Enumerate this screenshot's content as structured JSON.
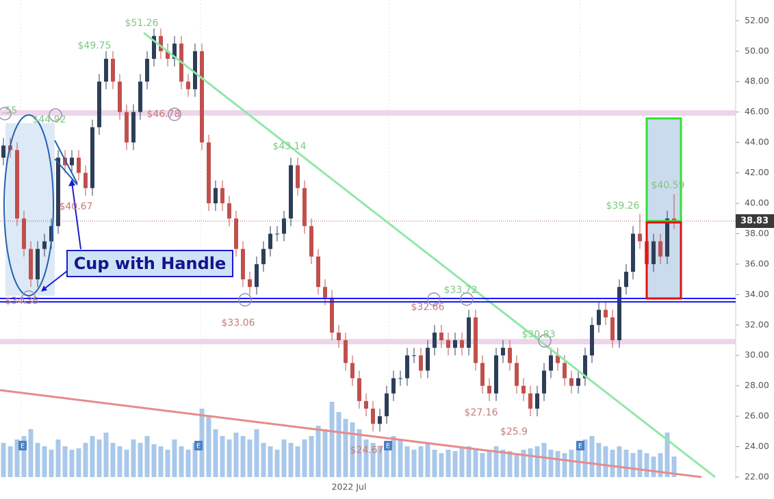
{
  "chart_data": {
    "type": "candlestick",
    "ylim": [
      22,
      52.6
    ],
    "yticks": [
      {
        "value": 22,
        "label": "22.00"
      },
      {
        "value": 24,
        "label": "24.00"
      },
      {
        "value": 26,
        "label": "26.00"
      },
      {
        "value": 28,
        "label": "28.00"
      },
      {
        "value": 30,
        "label": "30.00"
      },
      {
        "value": 32,
        "label": "32.00"
      },
      {
        "value": 34,
        "label": "34.00"
      },
      {
        "value": 36,
        "label": "36.00"
      },
      {
        "value": 38,
        "label": "38.00"
      },
      {
        "value": 40,
        "label": "40.00"
      },
      {
        "value": 42,
        "label": "42.00"
      },
      {
        "value": 44,
        "label": "44.00"
      },
      {
        "value": 46,
        "label": "46.00"
      },
      {
        "value": 48,
        "label": "48.00"
      },
      {
        "value": 50,
        "label": "50.00"
      },
      {
        "value": 52,
        "label": "52.00"
      }
    ],
    "x_labels": [
      "2022 Jul"
    ],
    "up_color": "#2c3e58",
    "down_color": "#c0504d",
    "volume_color": "#a9c8ea",
    "last_price": 38.83,
    "pattern_label": "Cup with Handle",
    "earnings_markers": [
      "E",
      "E",
      "E",
      "E"
    ],
    "annotations": [
      {
        "text": ".55",
        "color": "#7ec87e"
      },
      {
        "text": "$44.92",
        "color": "#7ec87e"
      },
      {
        "text": "$49.75",
        "color": "#7ec87e"
      },
      {
        "text": "$51.26",
        "color": "#7ec87e"
      },
      {
        "text": "$46.78",
        "color": "#c87a7a"
      },
      {
        "text": "$40.67",
        "color": "#c87a7a"
      },
      {
        "text": "$34.35",
        "color": "#c87a7a"
      },
      {
        "text": "$43.14",
        "color": "#7ec87e"
      },
      {
        "text": "$33.06",
        "color": "#c87a7a"
      },
      {
        "text": "$24.67",
        "color": "#c87a7a"
      },
      {
        "text": "$32.66",
        "color": "#c87a7a"
      },
      {
        "text": "$33.72",
        "color": "#7ec87e"
      },
      {
        "text": "$27.16",
        "color": "#c87a7a"
      },
      {
        "text": "$25.9",
        "color": "#c87a7a"
      },
      {
        "text": "$30.83",
        "color": "#7ec87e"
      },
      {
        "text": "$39.26",
        "color": "#7ec87e"
      },
      {
        "text": "$40.59",
        "color": "#7ec87e"
      }
    ],
    "candles": [
      [
        43,
        44.3,
        42.5,
        43.8
      ],
      [
        43.8,
        44.3,
        43,
        43.5
      ],
      [
        43.5,
        44,
        38.5,
        39
      ],
      [
        39,
        39.5,
        36.5,
        37
      ],
      [
        37,
        37.5,
        34.5,
        35
      ],
      [
        35,
        37.5,
        34.5,
        37
      ],
      [
        37,
        38,
        36.5,
        37.5
      ],
      [
        37.5,
        39,
        37,
        38.5
      ],
      [
        38.5,
        43.5,
        38,
        43
      ],
      [
        43,
        43.5,
        42,
        42.5
      ],
      [
        42.5,
        43.5,
        42,
        43
      ],
      [
        43,
        43.5,
        41.5,
        42
      ],
      [
        42,
        42.5,
        40.5,
        41
      ],
      [
        41,
        45.5,
        40.5,
        45
      ],
      [
        45,
        48.5,
        44.5,
        48
      ],
      [
        48,
        50,
        47.5,
        49.5
      ],
      [
        49.5,
        50,
        47.5,
        48
      ],
      [
        48,
        48.5,
        45.5,
        46
      ],
      [
        46,
        46.5,
        43.5,
        44
      ],
      [
        44,
        46.5,
        43.5,
        46
      ],
      [
        46,
        48.5,
        45.5,
        48
      ],
      [
        48,
        50,
        47.5,
        49.5
      ],
      [
        49.5,
        51.5,
        49,
        51
      ],
      [
        51,
        51.5,
        49.5,
        50
      ],
      [
        50,
        50.5,
        49,
        49.5
      ],
      [
        49.5,
        51,
        49,
        50.5
      ],
      [
        50.5,
        51,
        47.5,
        48
      ],
      [
        48,
        48.5,
        47,
        47.5
      ],
      [
        47.5,
        50.5,
        47,
        50
      ],
      [
        50,
        50.5,
        43.5,
        44
      ],
      [
        44,
        44.5,
        39.5,
        40
      ],
      [
        40,
        41.5,
        39.5,
        41
      ],
      [
        41,
        41.5,
        39.5,
        40
      ],
      [
        40,
        40.5,
        38.5,
        39
      ],
      [
        39,
        39.5,
        36.5,
        37
      ],
      [
        37,
        37.5,
        34.5,
        35
      ],
      [
        35,
        35.5,
        34,
        34.5
      ],
      [
        34.5,
        36.5,
        34,
        36
      ],
      [
        36,
        37.5,
        35.5,
        37
      ],
      [
        37,
        38.5,
        36.5,
        38
      ],
      [
        38,
        38.5,
        37.5,
        38
      ],
      [
        38,
        39.5,
        37.5,
        39
      ],
      [
        39,
        43,
        38.5,
        42.5
      ],
      [
        42.5,
        43,
        40.5,
        41
      ],
      [
        41,
        41.5,
        38,
        38.5
      ],
      [
        38.5,
        39,
        36,
        36.5
      ],
      [
        36.5,
        37,
        34,
        34.5
      ],
      [
        34.5,
        35,
        33.3,
        33.8
      ],
      [
        33.8,
        34.3,
        31,
        31.5
      ],
      [
        31.5,
        32,
        30.5,
        31
      ],
      [
        31,
        31.5,
        29,
        29.5
      ],
      [
        29.5,
        30,
        28,
        28.5
      ],
      [
        28.5,
        29,
        26.5,
        27
      ],
      [
        27,
        27.5,
        26,
        26.5
      ],
      [
        26.5,
        27,
        25,
        25.5
      ],
      [
        25.5,
        26.5,
        25,
        26
      ],
      [
        26,
        28,
        25.5,
        27.5
      ],
      [
        27.5,
        29,
        27,
        28.5
      ],
      [
        28.5,
        29,
        28,
        28.5
      ],
      [
        28.5,
        30.5,
        28,
        30
      ],
      [
        30,
        30.5,
        29.5,
        30
      ],
      [
        30,
        30.5,
        28.5,
        29
      ],
      [
        29,
        31,
        28.5,
        30.5
      ],
      [
        30.5,
        32,
        30,
        31.5
      ],
      [
        31.5,
        32,
        30.5,
        31
      ],
      [
        31,
        31.5,
        30,
        30.5
      ],
      [
        30.5,
        31.5,
        30,
        31
      ],
      [
        31,
        31.5,
        30,
        30.5
      ],
      [
        30.5,
        33,
        30,
        32.5
      ],
      [
        32.5,
        33,
        29,
        29.5
      ],
      [
        29.5,
        30,
        27.5,
        28
      ],
      [
        28,
        28.5,
        27,
        27.5
      ],
      [
        27.5,
        30.5,
        27,
        30
      ],
      [
        30,
        31,
        29.5,
        30.5
      ],
      [
        30.5,
        31,
        29,
        29.5
      ],
      [
        29.5,
        30,
        27.5,
        28
      ],
      [
        28,
        28.5,
        27,
        27.5
      ],
      [
        27.5,
        28,
        26,
        26.5
      ],
      [
        26.5,
        28,
        26,
        27.5
      ],
      [
        27.5,
        29.5,
        27,
        29
      ],
      [
        29,
        30.5,
        28.5,
        30
      ],
      [
        30,
        30.5,
        29,
        29.5
      ],
      [
        29.5,
        30,
        28,
        28.5
      ],
      [
        28.5,
        29,
        27.5,
        28
      ],
      [
        28,
        29,
        27.5,
        28.5
      ],
      [
        28.5,
        30.5,
        28,
        30
      ],
      [
        30,
        32.5,
        29.5,
        32
      ],
      [
        32,
        33.5,
        31.5,
        33
      ],
      [
        33,
        33.5,
        32,
        32.5
      ],
      [
        32.5,
        33,
        30.5,
        31
      ],
      [
        31,
        35,
        30.5,
        34.5
      ],
      [
        34.5,
        36,
        34,
        35.5
      ],
      [
        35.5,
        38.5,
        35,
        38
      ],
      [
        38,
        39.3,
        37,
        37.5
      ],
      [
        37.5,
        38,
        35.5,
        36
      ],
      [
        36,
        38,
        35.5,
        37.5
      ],
      [
        37.5,
        38,
        36,
        36.5
      ],
      [
        36.5,
        39.5,
        36,
        39
      ],
      [
        39,
        40.6,
        38.3,
        38.8
      ]
    ],
    "volume": [
      50,
      45,
      55,
      60,
      70,
      50,
      45,
      40,
      55,
      45,
      40,
      42,
      50,
      60,
      55,
      65,
      50,
      45,
      40,
      55,
      50,
      60,
      48,
      45,
      40,
      55,
      45,
      40,
      50,
      100,
      90,
      70,
      60,
      55,
      65,
      60,
      55,
      70,
      50,
      45,
      40,
      55,
      50,
      45,
      55,
      60,
      75,
      70,
      110,
      95,
      85,
      80,
      70,
      55,
      50,
      45,
      40,
      60,
      55,
      45,
      40,
      45,
      50,
      40,
      35,
      40,
      38,
      42,
      45,
      40,
      35,
      40,
      45,
      40,
      38,
      35,
      40,
      42,
      45,
      50,
      40,
      38,
      35,
      40,
      45,
      55,
      60,
      50,
      45,
      40,
      45,
      40,
      35,
      40,
      35,
      30,
      35,
      65,
      30
    ]
  }
}
